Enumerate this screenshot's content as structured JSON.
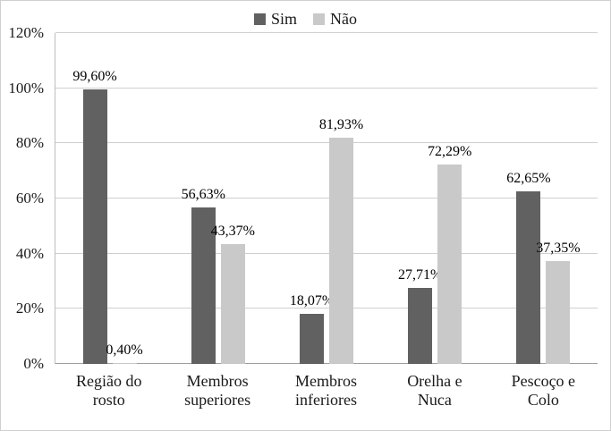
{
  "chart_data": {
    "type": "bar",
    "title": "",
    "categories": [
      "Região do rosto",
      "Membros superiores",
      "Membros inferiores",
      "Orelha e Nuca",
      "Pescoço e Colo"
    ],
    "category_lines": [
      [
        "Região do",
        "rosto"
      ],
      [
        "Membros",
        "superiores"
      ],
      [
        "Membros",
        "inferiores"
      ],
      [
        "Orelha e",
        "Nuca"
      ],
      [
        "Pescoço e",
        "Colo"
      ]
    ],
    "series": [
      {
        "name": "Sim",
        "color": "#616161",
        "values": [
          99.6,
          56.63,
          18.07,
          27.71,
          62.65
        ],
        "data_labels": [
          "99,60%",
          "56,63%",
          "18,07%",
          "27,71%",
          "62,65%"
        ]
      },
      {
        "name": "Não",
        "color": "#c9c9c9",
        "values": [
          0.4,
          43.37,
          81.93,
          72.29,
          37.35
        ],
        "data_labels": [
          "0,40%",
          "43,37%",
          "81,93%",
          "72,29%",
          "37,35%"
        ]
      }
    ],
    "ylim": [
      0,
      120
    ],
    "y_tick_values": [
      0,
      20,
      40,
      60,
      80,
      100,
      120
    ],
    "y_tick_labels": [
      "0%",
      "20%",
      "40%",
      "60%",
      "80%",
      "100%",
      "120%"
    ],
    "grid": true,
    "legend_position": "top",
    "colors": {
      "gridline": "#cfcfcf",
      "axis_line": "#9e9e9e",
      "text": "#1a1a1a",
      "data_label_text": "#000000",
      "border": "#cfcfcf",
      "background": "#ffffff"
    }
  }
}
